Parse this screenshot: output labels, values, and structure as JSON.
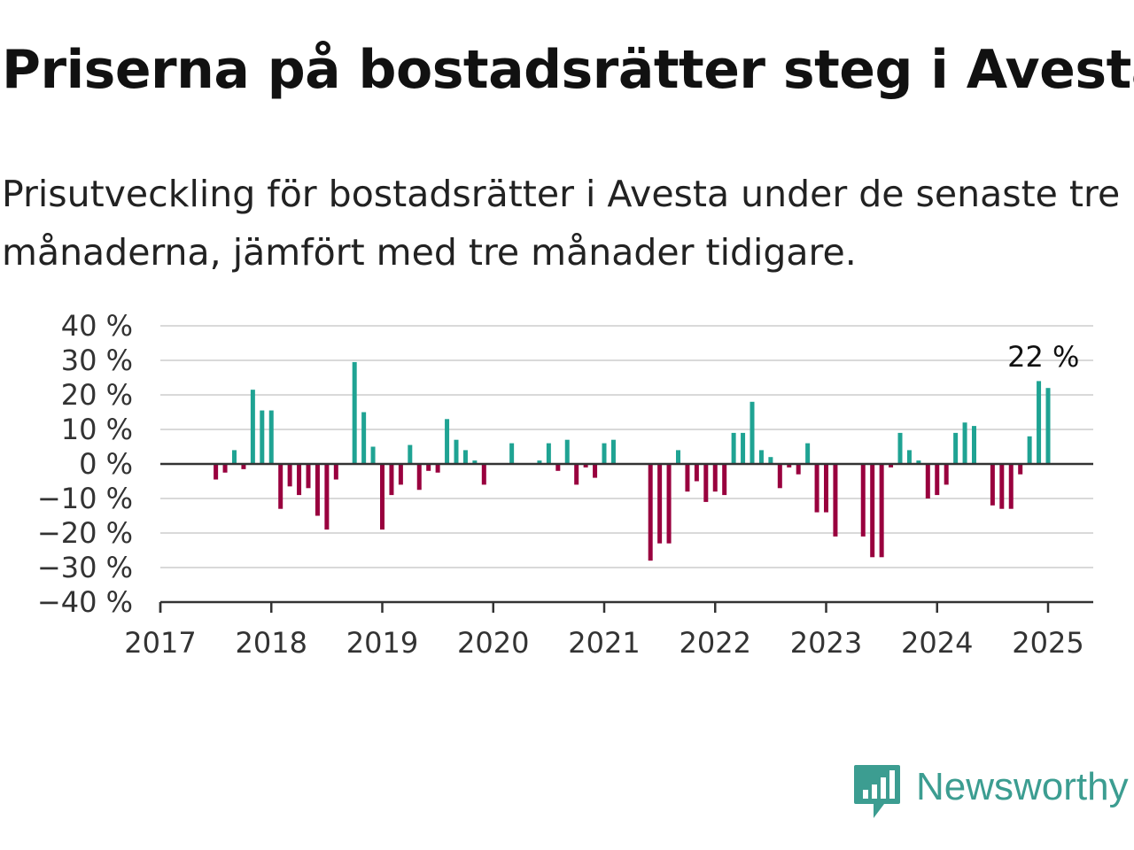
{
  "title": "Priserna på bostadsrätter steg i Avesta",
  "subtitle": "Prisutveckling för bostadsrätter i Avesta under de senaste tre månaderna, jämfört med tre månader tidigare.",
  "brand": "Newsworthy",
  "colors": {
    "positive": "#1fa393",
    "negative": "#99003e",
    "grid": "#d9d9d9",
    "axis": "#333333",
    "brand": "#3c9d91"
  },
  "chart_data": {
    "type": "bar",
    "x_unit": "month",
    "xlim": [
      "2017-01",
      "2025-05"
    ],
    "ylim": [
      -40,
      40
    ],
    "yticks": [
      -40,
      -30,
      -20,
      -10,
      0,
      10,
      20,
      30,
      40
    ],
    "ytick_labels": [
      "−40 %",
      "−30 %",
      "−20 %",
      "−10 %",
      "0 %",
      "10 %",
      "20 %",
      "30 %",
      "40 %"
    ],
    "xticks": [
      "2017-01",
      "2018-01",
      "2019-01",
      "2020-01",
      "2021-01",
      "2022-01",
      "2023-01",
      "2024-01",
      "2025-01"
    ],
    "xtick_labels": [
      "2017",
      "2018",
      "2019",
      "2020",
      "2021",
      "2022",
      "2023",
      "2024",
      "2025"
    ],
    "grid": true,
    "annotation": {
      "text": "22 %",
      "x": "2024-12"
    },
    "points": [
      {
        "x": "2017-07",
        "y": -4.5
      },
      {
        "x": "2017-08",
        "y": -2.5
      },
      {
        "x": "2017-09",
        "y": 4
      },
      {
        "x": "2017-10",
        "y": -1.5
      },
      {
        "x": "2017-11",
        "y": 21.5
      },
      {
        "x": "2017-12",
        "y": 15.5
      },
      {
        "x": "2018-01",
        "y": 15.5
      },
      {
        "x": "2018-02",
        "y": -13
      },
      {
        "x": "2018-03",
        "y": -6.5
      },
      {
        "x": "2018-04",
        "y": -9
      },
      {
        "x": "2018-05",
        "y": -7
      },
      {
        "x": "2018-06",
        "y": -15
      },
      {
        "x": "2018-07",
        "y": -19
      },
      {
        "x": "2018-08",
        "y": -4.5
      },
      {
        "x": "2018-10",
        "y": 29.5
      },
      {
        "x": "2018-11",
        "y": 15
      },
      {
        "x": "2018-12",
        "y": 5
      },
      {
        "x": "2019-01",
        "y": -19
      },
      {
        "x": "2019-02",
        "y": -9
      },
      {
        "x": "2019-03",
        "y": -6
      },
      {
        "x": "2019-04",
        "y": 5.5
      },
      {
        "x": "2019-05",
        "y": -7.5
      },
      {
        "x": "2019-06",
        "y": -2
      },
      {
        "x": "2019-07",
        "y": -2.5
      },
      {
        "x": "2019-08",
        "y": 13
      },
      {
        "x": "2019-09",
        "y": 7
      },
      {
        "x": "2019-10",
        "y": 4
      },
      {
        "x": "2019-11",
        "y": 1
      },
      {
        "x": "2019-12",
        "y": -6
      },
      {
        "x": "2020-03",
        "y": 6
      },
      {
        "x": "2020-06",
        "y": 1
      },
      {
        "x": "2020-07",
        "y": 6
      },
      {
        "x": "2020-08",
        "y": -2
      },
      {
        "x": "2020-09",
        "y": 7
      },
      {
        "x": "2020-10",
        "y": -6
      },
      {
        "x": "2020-11",
        "y": -1
      },
      {
        "x": "2020-12",
        "y": -4
      },
      {
        "x": "2021-01",
        "y": 6
      },
      {
        "x": "2021-02",
        "y": 7
      },
      {
        "x": "2021-06",
        "y": -28
      },
      {
        "x": "2021-07",
        "y": -23
      },
      {
        "x": "2021-08",
        "y": -23
      },
      {
        "x": "2021-09",
        "y": 4
      },
      {
        "x": "2021-10",
        "y": -8
      },
      {
        "x": "2021-11",
        "y": -5
      },
      {
        "x": "2021-12",
        "y": -11
      },
      {
        "x": "2022-01",
        "y": -8
      },
      {
        "x": "2022-02",
        "y": -9
      },
      {
        "x": "2022-03",
        "y": 9
      },
      {
        "x": "2022-04",
        "y": 9
      },
      {
        "x": "2022-05",
        "y": 18
      },
      {
        "x": "2022-06",
        "y": 4
      },
      {
        "x": "2022-07",
        "y": 2
      },
      {
        "x": "2022-08",
        "y": -7
      },
      {
        "x": "2022-09",
        "y": -1
      },
      {
        "x": "2022-10",
        "y": -3
      },
      {
        "x": "2022-11",
        "y": 6
      },
      {
        "x": "2022-12",
        "y": -14
      },
      {
        "x": "2023-01",
        "y": -14
      },
      {
        "x": "2023-02",
        "y": -21
      },
      {
        "x": "2023-05",
        "y": -21
      },
      {
        "x": "2023-06",
        "y": -27
      },
      {
        "x": "2023-07",
        "y": -27
      },
      {
        "x": "2023-08",
        "y": -1
      },
      {
        "x": "2023-09",
        "y": 9
      },
      {
        "x": "2023-10",
        "y": 4
      },
      {
        "x": "2023-11",
        "y": 1
      },
      {
        "x": "2023-12",
        "y": -10
      },
      {
        "x": "2024-01",
        "y": -9
      },
      {
        "x": "2024-02",
        "y": -6
      },
      {
        "x": "2024-03",
        "y": 9
      },
      {
        "x": "2024-04",
        "y": 12
      },
      {
        "x": "2024-05",
        "y": 11
      },
      {
        "x": "2024-07",
        "y": -12
      },
      {
        "x": "2024-08",
        "y": -13
      },
      {
        "x": "2024-09",
        "y": -13
      },
      {
        "x": "2024-10",
        "y": -3
      },
      {
        "x": "2024-11",
        "y": 8
      },
      {
        "x": "2024-12",
        "y": 24
      },
      {
        "x": "2025-01",
        "y": 22
      }
    ]
  }
}
